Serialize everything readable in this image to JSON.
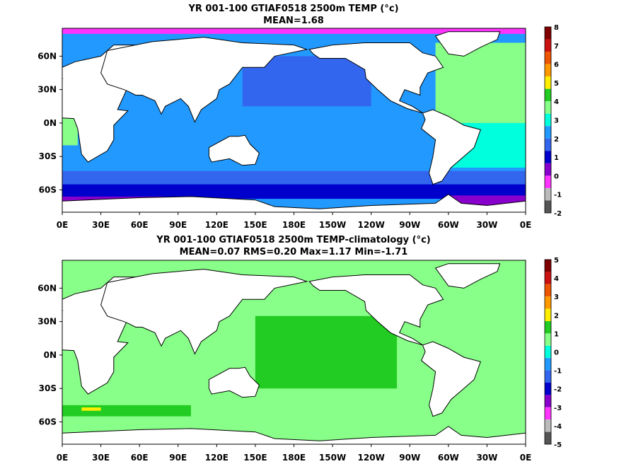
{
  "chart_data": [
    {
      "type": "heatmap",
      "title_lines": [
        "YR 001-100 GTIAF0518 2500m TEMP (°c)",
        "MEAN=1.68"
      ],
      "x_tick_labels": [
        "0E",
        "30E",
        "60E",
        "90E",
        "120E",
        "150E",
        "180E",
        "150W",
        "120W",
        "90W",
        "60W",
        "30W",
        "0E"
      ],
      "y_tick_labels": [
        "60N",
        "30N",
        "0N",
        "30S",
        "60S"
      ],
      "y_tick_values": [
        60,
        30,
        0,
        -30,
        -60
      ],
      "xlim": [
        0,
        360
      ],
      "ylim": [
        -80,
        85
      ],
      "colorbar": {
        "labels": [
          "8",
          "7",
          "6",
          "5",
          "4",
          "3",
          "2",
          "1",
          "0",
          "-1",
          "-2"
        ],
        "colors": [
          "#800000",
          "#cc1111",
          "#ee5500",
          "#ff9900",
          "#ffee00",
          "#22cc22",
          "#88ff88",
          "#00ffdd",
          "#2299ff",
          "#3366ee",
          "#0000cc",
          "#8800cc",
          "#ff33ff",
          "#bbbbbb",
          "#555555"
        ]
      },
      "ocean_base_color": "#2299ff",
      "regions": [
        {
          "name": "atlantic-north",
          "color": "#88ff88",
          "lon": [
            290,
            360
          ],
          "lat": [
            0,
            72
          ]
        },
        {
          "name": "atlantic-south",
          "color": "#00ffdd",
          "lon": [
            300,
            360
          ],
          "lat": [
            -40,
            0
          ]
        },
        {
          "name": "indian-west",
          "color": "#88ff88",
          "lon": [
            0,
            12
          ],
          "lat": [
            -20,
            5
          ]
        },
        {
          "name": "southern-band-1",
          "color": "#3366ee",
          "lon": [
            0,
            360
          ],
          "lat": [
            -55,
            -43
          ]
        },
        {
          "name": "southern-band-2",
          "color": "#0000cc",
          "lon": [
            0,
            360
          ],
          "lat": [
            -68,
            -55
          ]
        },
        {
          "name": "weddell",
          "color": "#8800cc",
          "lon": [
            300,
            360
          ],
          "lat": [
            -78,
            -65
          ]
        },
        {
          "name": "ross",
          "color": "#8800cc",
          "lon": [
            0,
            80
          ],
          "lat": [
            -78,
            -66
          ]
        },
        {
          "name": "arctic",
          "color": "#ff33ff",
          "lon": [
            0,
            360
          ],
          "lat": [
            80,
            85
          ]
        },
        {
          "name": "north-pacific",
          "color": "#3366ee",
          "lon": [
            140,
            240
          ],
          "lat": [
            15,
            60
          ]
        }
      ]
    },
    {
      "type": "heatmap",
      "title_lines": [
        "YR 001-100 GTIAF0518 2500m TEMP-climatology (°c)",
        "MEAN=0.07   RMS=0.20   Max=1.17   Min=-1.71"
      ],
      "x_tick_labels": [
        "0E",
        "30E",
        "60E",
        "90E",
        "120E",
        "150E",
        "180E",
        "150W",
        "120W",
        "90W",
        "60W",
        "30W",
        "0E"
      ],
      "y_tick_labels": [
        "60N",
        "30N",
        "0N",
        "30S",
        "60S"
      ],
      "y_tick_values": [
        60,
        30,
        0,
        -30,
        -60
      ],
      "xlim": [
        0,
        360
      ],
      "ylim": [
        -80,
        85
      ],
      "colorbar": {
        "labels": [
          "5",
          "4",
          "3",
          "2",
          "1",
          "0",
          "-1",
          "-2",
          "-3",
          "-4",
          "-5"
        ],
        "colors": [
          "#800000",
          "#cc1111",
          "#ee5500",
          "#ff9900",
          "#ffee00",
          "#22cc22",
          "#88ff88",
          "#00ffdd",
          "#2299ff",
          "#3366ee",
          "#0000cc",
          "#8800cc",
          "#ff33ff",
          "#bbbbbb",
          "#555555"
        ]
      },
      "ocean_base_color": "#88ff88",
      "regions": [
        {
          "name": "pacific-anomaly",
          "color": "#22cc22",
          "lon": [
            150,
            260
          ],
          "lat": [
            -30,
            35
          ]
        },
        {
          "name": "south-band",
          "color": "#22cc22",
          "lon": [
            0,
            100
          ],
          "lat": [
            -55,
            -45
          ]
        },
        {
          "name": "yellow-spot",
          "color": "#ffee00",
          "lon": [
            15,
            30
          ],
          "lat": [
            -50,
            -47
          ]
        }
      ]
    }
  ]
}
